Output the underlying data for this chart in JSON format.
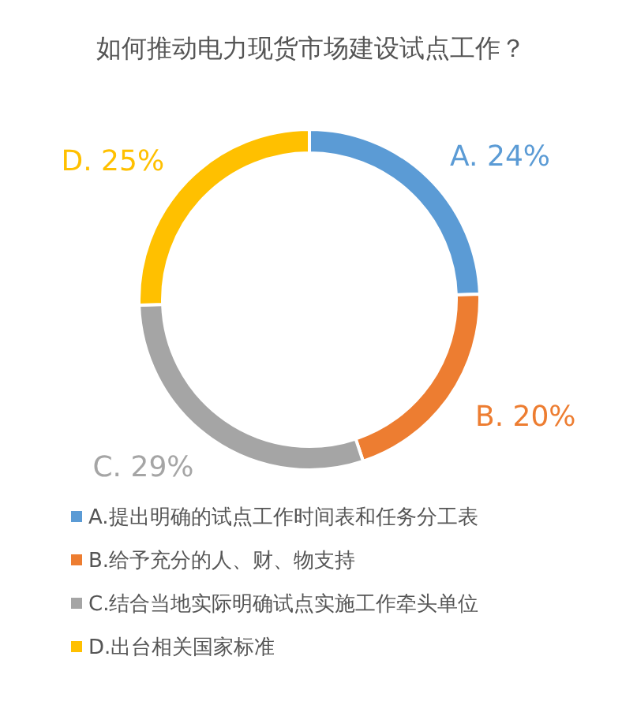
{
  "chart_data": {
    "type": "donut",
    "title": "如何推动电力现货市场建设试点工作？",
    "categories": [
      "A.提出明确的试点工作时间表和任务分工表",
      "B.给予充分的人、财、物支持",
      "C.结合当地实际明确试点实施工作牵头单位",
      "D.出台相关国家标准"
    ],
    "values": [
      24,
      20,
      29,
      25
    ],
    "value_labels": [
      "A. 24%",
      "B. 20%",
      "C. 29%",
      "D. 25%"
    ],
    "colors": [
      "#5b9bd5",
      "#ed7d31",
      "#a5a5a5",
      "#ffc000"
    ],
    "legend": "bottom"
  }
}
